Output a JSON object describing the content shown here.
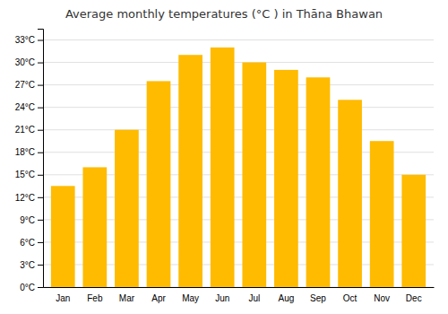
{
  "chart_data": {
    "type": "bar",
    "title": "Average monthly temperatures (°C ) in Thāna Bhawan",
    "categories": [
      "Jan",
      "Feb",
      "Mar",
      "Apr",
      "May",
      "Jun",
      "Jul",
      "Aug",
      "Sep",
      "Oct",
      "Nov",
      "Dec"
    ],
    "values": [
      13.5,
      16.0,
      21.0,
      27.5,
      31.0,
      32.0,
      30.0,
      29.0,
      28.0,
      25.0,
      19.5,
      15.0
    ],
    "color": "#FFBB00",
    "ylim": [
      0,
      34.5
    ],
    "yticks": [
      {
        "value": 0,
        "label": "0°C"
      },
      {
        "value": 3,
        "label": "3°C"
      },
      {
        "value": 6,
        "label": "6°C"
      },
      {
        "value": 9,
        "label": "9°C"
      },
      {
        "value": 12,
        "label": "12°C"
      },
      {
        "value": 15,
        "label": "15°C"
      },
      {
        "value": 18,
        "label": "18°C"
      },
      {
        "value": 21,
        "label": "21°C"
      },
      {
        "value": 24,
        "label": "24°C"
      },
      {
        "value": 27,
        "label": "27°C"
      },
      {
        "value": 30,
        "label": "30°C"
      },
      {
        "value": 33,
        "label": "33°C"
      }
    ],
    "grid": true
  }
}
